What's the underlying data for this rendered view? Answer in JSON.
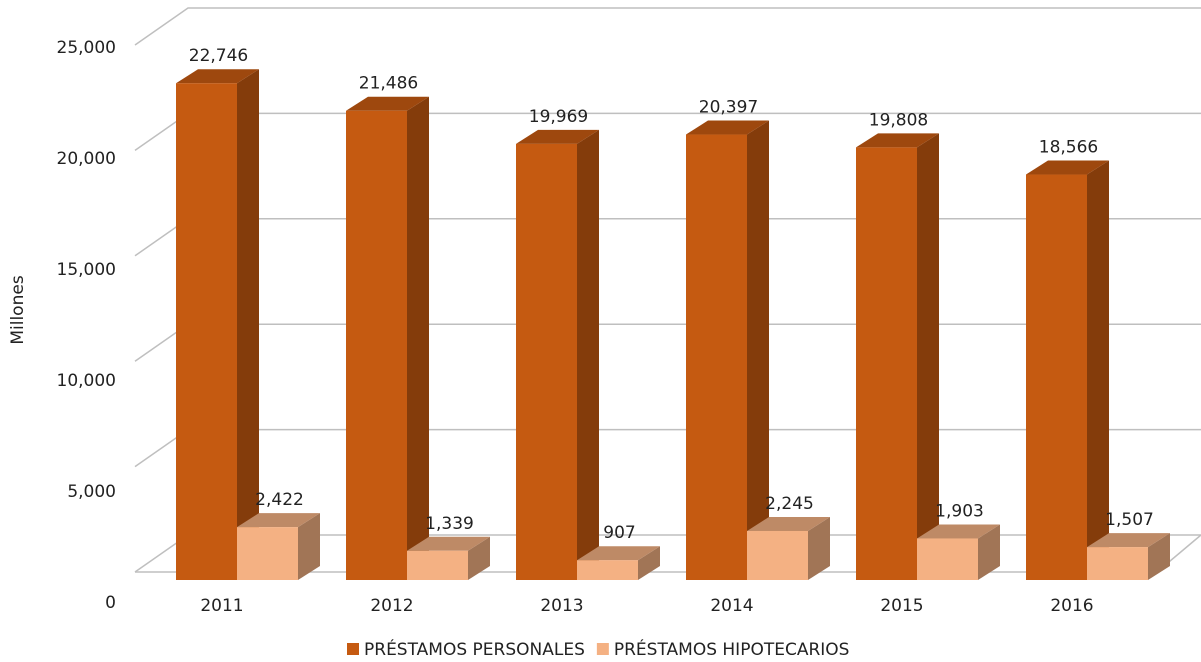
{
  "chart_data": {
    "type": "bar3d",
    "y_axis_label": "Millones",
    "categories": [
      "2011",
      "2012",
      "2013",
      "2014",
      "2015",
      "2016"
    ],
    "series": [
      {
        "name": "PRÉSTAMOS PERSONALES",
        "color": "#c55a11",
        "values": [
          22746,
          21486,
          19969,
          20397,
          19808,
          18566
        ],
        "value_labels": [
          "22,746",
          "21,486",
          "19,969",
          "20,397",
          "19,808",
          "18,566"
        ]
      },
      {
        "name": "PRÉSTAMOS HIPOTECARIOS",
        "color": "#f4b183",
        "values": [
          2422,
          1339,
          907,
          2245,
          1903,
          1507
        ],
        "value_labels": [
          "2,422",
          "1,339",
          "907",
          "2,245",
          "1,903",
          "1,507"
        ]
      }
    ],
    "ylim": [
      0,
      25000
    ],
    "yticks": [
      0,
      {
        "value": 5000,
        "label": "5,000"
      },
      {
        "value": 10000,
        "label": "10,000"
      },
      {
        "value": 15000,
        "label": "15,000"
      },
      {
        "value": 20000,
        "label": "20,000"
      },
      {
        "value": 25000,
        "label": "25,000"
      }
    ],
    "grid": true,
    "legend": "bottom"
  }
}
